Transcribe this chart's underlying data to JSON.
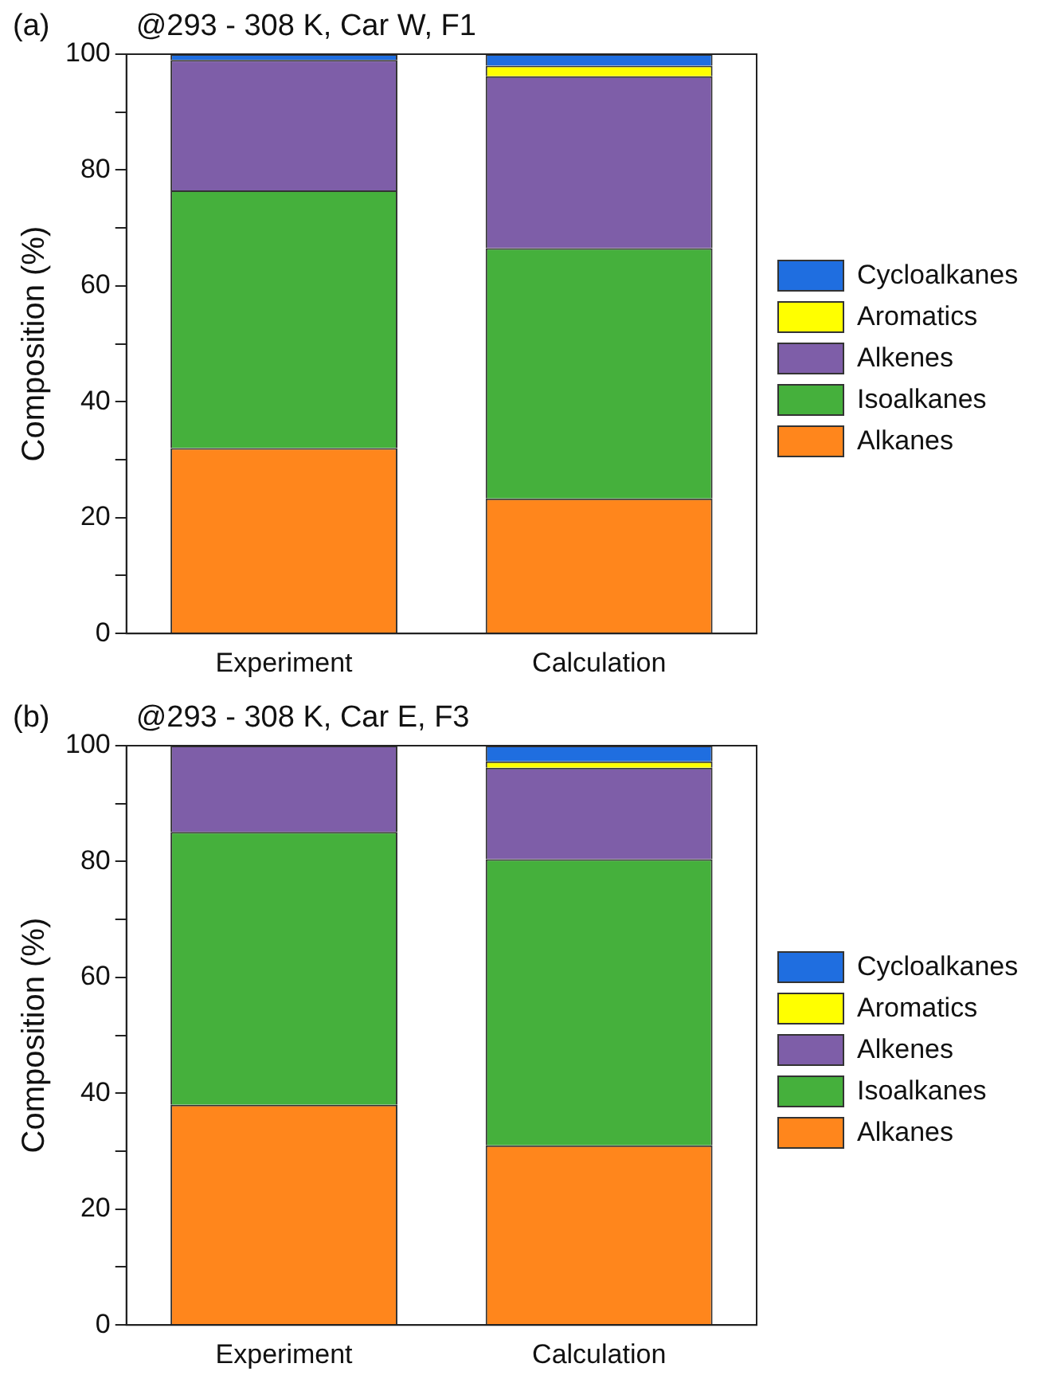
{
  "chart_data": [
    {
      "type": "bar",
      "title": "@293 - 308 K, Car W, F1",
      "ylabel": "Composition (%)",
      "annotations": [
        "(a)"
      ],
      "categories": [
        "Experiment",
        "Calculation"
      ],
      "stacked": true,
      "legend": "right",
      "ylim": [
        0,
        100
      ],
      "yticks": [
        0,
        {
          "value": 10,
          "label": null
        },
        20,
        {
          "value": 30,
          "label": null
        },
        40,
        {
          "value": 50,
          "label": null
        },
        60,
        {
          "value": 70,
          "label": null
        },
        80,
        {
          "value": 90,
          "label": null
        },
        100
      ],
      "grid": false,
      "series": [
        {
          "name": "Alkanes",
          "color": "#ff861c",
          "values": [
            32,
            23.3
          ]
        },
        {
          "name": "Isoalkanes",
          "color": "#45b03c",
          "values": [
            44.5,
            43.2
          ]
        },
        {
          "name": "Alkenes",
          "color": "#7e5ea8",
          "values": [
            22.5,
            29.7
          ]
        },
        {
          "name": "Aromatics",
          "color": "#ffff00",
          "values": [
            0,
            1.8
          ]
        },
        {
          "name": "Cycloalkanes",
          "color": "#1f6ee0",
          "values": [
            1,
            2
          ]
        }
      ]
    },
    {
      "type": "bar",
      "title": "@293 - 308 K, Car E, F3",
      "ylabel": "Composition (%)",
      "annotations": [
        "(b)"
      ],
      "categories": [
        "Experiment",
        "Calculation"
      ],
      "stacked": true,
      "legend": "right",
      "ylim": [
        0,
        100
      ],
      "yticks": [
        0,
        {
          "value": 10,
          "label": null
        },
        20,
        {
          "value": 30,
          "label": null
        },
        40,
        {
          "value": 50,
          "label": null
        },
        60,
        {
          "value": 70,
          "label": null
        },
        80,
        {
          "value": 90,
          "label": null
        },
        100
      ],
      "grid": false,
      "series": [
        {
          "name": "Alkanes",
          "color": "#ff861c",
          "values": [
            38,
            31
          ]
        },
        {
          "name": "Isoalkanes",
          "color": "#45b03c",
          "values": [
            47.1,
            49.4
          ]
        },
        {
          "name": "Alkenes",
          "color": "#7e5ea8",
          "values": [
            14.9,
            15.8
          ]
        },
        {
          "name": "Aromatics",
          "color": "#ffff00",
          "values": [
            0,
            1.1
          ]
        },
        {
          "name": "Cycloalkanes",
          "color": "#1f6ee0",
          "values": [
            0,
            2.7
          ]
        }
      ]
    }
  ]
}
